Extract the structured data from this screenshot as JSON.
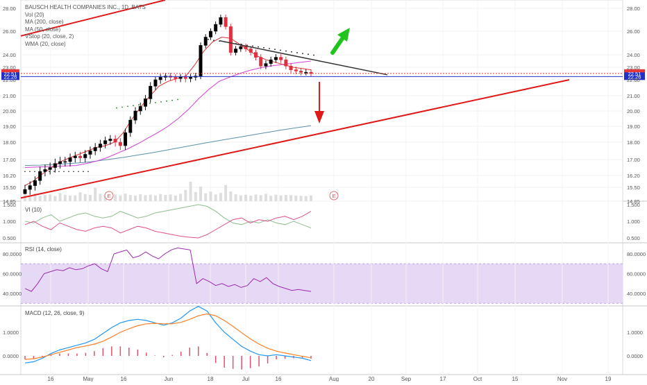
{
  "header": {
    "title": "BAUSCH HEALTH COMPANIES INC., 1D, BATS",
    "indicators": [
      "Vol (20)",
      "MA (200, close)",
      "MA (50, close)",
      "VStop (20, close, 2)",
      "WMA (20, close)"
    ]
  },
  "colors": {
    "up_candle": "#ffffff",
    "down_candle": "#e0303f",
    "bull_body": "#000000",
    "ma200": "#5b8fa8",
    "ma50": "#d43fd6",
    "wma20": "#e03030",
    "trendline_red": "#e01818",
    "trendline_black": "#333333",
    "arrow_up": "#21c41e",
    "arrow_down": "#e01818",
    "price_label_red": "#e53939",
    "price_label_blue": "#2030c8",
    "vi_plus": "#8fbc8f",
    "vi_minus": "#e0508a",
    "rsi_line": "#9c27b0",
    "rsi_band": "#e6d9f5",
    "macd_line": "#2196f3",
    "signal_line": "#ff7f27",
    "hist": "#e0506a"
  },
  "price_labels": {
    "last": "22.51",
    "level": "22.26"
  },
  "events": [
    "E",
    "E"
  ],
  "panes": {
    "vi_label": "VI (10)",
    "rsi_label": "RSI (14, close)",
    "macd_label": "MACD (12, 26, close, 9)"
  },
  "x_axis": {
    "ticks": [
      "16",
      "May",
      "16",
      "Jun",
      "18",
      "Jul",
      "16",
      "Aug",
      "20",
      "Sep",
      "17",
      "Oct",
      "15",
      "Nov",
      "19"
    ]
  },
  "chart_data": [
    {
      "type": "candlestick",
      "title": "BAUSCH HEALTH COMPANIES INC., 1D, BATS",
      "y_ticks": [
        "28.00",
        "26.00",
        "24.00",
        "23.00",
        "22.00",
        "21.00",
        "20.00",
        "19.00",
        "18.00",
        "17.00",
        "16.20",
        "15.50",
        "14.85"
      ],
      "close": [
        15.4,
        15.6,
        15.9,
        16.4,
        16.5,
        16.6,
        16.8,
        16.9,
        16.9,
        17.1,
        17.2,
        17.1,
        17.3,
        17.5,
        17.7,
        17.9,
        18.1,
        18.2,
        18.0,
        17.8,
        18.6,
        19.4,
        20.0,
        20.3,
        20.8,
        21.6,
        22.0,
        22.2,
        22.3,
        22.2,
        22.1,
        22.2,
        22.1,
        22.2,
        22.3,
        24.8,
        25.5,
        26.0,
        26.6,
        27.2,
        26.4,
        24.2,
        24.5,
        24.7,
        24.5,
        24.2,
        23.8,
        23.1,
        23.3,
        23.6,
        23.8,
        23.6,
        23.1,
        22.8,
        22.7,
        22.6,
        22.6,
        22.5
      ],
      "ma200": [
        16.7,
        16.71,
        16.72,
        16.74,
        16.76,
        16.78,
        16.8,
        16.83,
        16.86,
        16.9,
        16.95,
        17.0,
        17.06,
        17.12,
        17.19,
        17.26,
        17.33,
        17.4,
        17.48,
        17.56,
        17.64,
        17.72,
        17.8,
        17.88,
        17.96,
        18.04,
        18.12,
        18.2,
        18.28,
        18.36,
        18.44,
        18.52,
        18.6,
        18.68,
        18.76,
        18.83,
        18.9,
        18.97,
        19.04
      ],
      "ma50": [
        16.6,
        16.62,
        16.64,
        16.66,
        16.68,
        16.7,
        16.8,
        16.92,
        17.1,
        17.35,
        17.6,
        17.9,
        18.25,
        18.6,
        19.0,
        19.5,
        20.1,
        20.8,
        21.4,
        21.9,
        22.2,
        22.5,
        22.75,
        22.95,
        23.1,
        23.2,
        23.3,
        23.4,
        23.5
      ],
      "wma20": [
        15.6,
        15.9,
        16.3,
        16.6,
        16.9,
        17.1,
        17.3,
        17.5,
        17.7,
        17.8,
        18.0,
        18.6,
        19.5,
        20.3,
        21.0,
        21.6,
        21.9,
        22.1,
        22.3,
        23.2,
        24.3,
        25.1,
        25.5,
        25.4,
        24.9,
        24.4,
        23.9,
        23.6,
        23.4,
        23.2,
        23.0,
        22.9,
        22.8
      ],
      "volume": [
        3.2,
        2.8,
        3.6,
        2.5,
        2.9,
        3.1,
        2.4,
        3.8,
        3.0,
        2.6,
        2.7,
        4.1,
        3.3,
        2.9,
        6.2,
        3.4,
        3.0,
        2.8,
        3.1,
        2.7,
        3.5,
        2.9,
        2.6,
        3.2,
        2.8,
        3.0,
        2.7,
        3.3,
        2.9,
        3.1,
        2.6,
        3.4,
        5.2,
        9.0,
        4.2,
        6.8,
        3.6,
        4.4,
        3.1,
        3.8,
        7.5,
        4.5,
        3.2,
        2.7,
        3.0,
        2.6,
        3.1,
        2.8,
        3.4,
        2.5,
        3.0,
        2.7,
        2.9,
        2.8,
        2.6,
        2.5,
        2.4,
        2.6
      ]
    },
    {
      "type": "line",
      "title": "VI (10)",
      "y_ticks": [
        "1.500",
        "1.000",
        "0.500"
      ],
      "series": [
        {
          "name": "VI+",
          "values": [
            1.0,
            0.95,
            1.1,
            1.2,
            1.0,
            1.1,
            1.2,
            1.25,
            1.15,
            1.1,
            1.15,
            1.3,
            1.2,
            1.1,
            1.15,
            1.25,
            1.3,
            1.35,
            1.4,
            1.45,
            1.5,
            1.45,
            1.3,
            1.1,
            0.95,
            0.9,
            1.0,
            0.95,
            1.05,
            0.95,
            0.9,
            1.0,
            0.9,
            0.8
          ]
        },
        {
          "name": "VI-",
          "values": [
            0.9,
            1.0,
            0.85,
            0.75,
            0.95,
            0.85,
            0.75,
            0.7,
            0.8,
            0.85,
            0.8,
            0.65,
            0.75,
            0.85,
            0.8,
            0.7,
            0.65,
            0.6,
            0.55,
            0.52,
            0.5,
            0.6,
            0.75,
            0.9,
            1.05,
            1.1,
            0.95,
            1.05,
            1.0,
            1.1,
            1.15,
            1.05,
            1.15,
            1.3
          ]
        }
      ]
    },
    {
      "type": "line",
      "title": "RSI (14, close)",
      "y_ticks": [
        "80.0000",
        "60.0000",
        "40.0000"
      ],
      "series": [
        {
          "name": "RSI",
          "values": [
            45,
            42,
            50,
            60,
            62,
            64,
            63,
            66,
            64,
            65,
            68,
            70,
            65,
            62,
            80,
            82,
            84,
            76,
            78,
            82,
            78,
            75,
            80,
            84,
            86,
            85,
            84,
            50,
            55,
            52,
            48,
            50,
            47,
            49,
            46,
            48,
            55,
            52,
            56,
            50,
            47,
            45,
            43,
            44,
            43,
            42
          ]
        }
      ]
    },
    {
      "type": "line",
      "title": "MACD (12, 26, close, 9)",
      "y_ticks": [
        "1.0000",
        "0.0000"
      ],
      "series": [
        {
          "name": "MACD",
          "values": [
            -0.3,
            -0.25,
            -0.1,
            0.1,
            0.25,
            0.35,
            0.45,
            0.55,
            0.7,
            0.95,
            1.2,
            1.4,
            1.5,
            1.55,
            1.5,
            1.4,
            1.3,
            1.4,
            1.6,
            1.9,
            2.1,
            1.9,
            1.4,
            1.0,
            0.7,
            0.4,
            0.2,
            0.05,
            0.0,
            0.05,
            0.0,
            -0.05,
            -0.1,
            -0.2
          ]
        },
        {
          "name": "Signal",
          "values": [
            -0.15,
            -0.12,
            -0.05,
            0.05,
            0.15,
            0.25,
            0.35,
            0.42,
            0.5,
            0.62,
            0.8,
            1.0,
            1.15,
            1.28,
            1.36,
            1.38,
            1.36,
            1.36,
            1.42,
            1.55,
            1.7,
            1.78,
            1.7,
            1.5,
            1.25,
            0.98,
            0.72,
            0.5,
            0.32,
            0.2,
            0.12,
            0.05,
            -0.02,
            -0.08
          ]
        }
      ]
    }
  ]
}
